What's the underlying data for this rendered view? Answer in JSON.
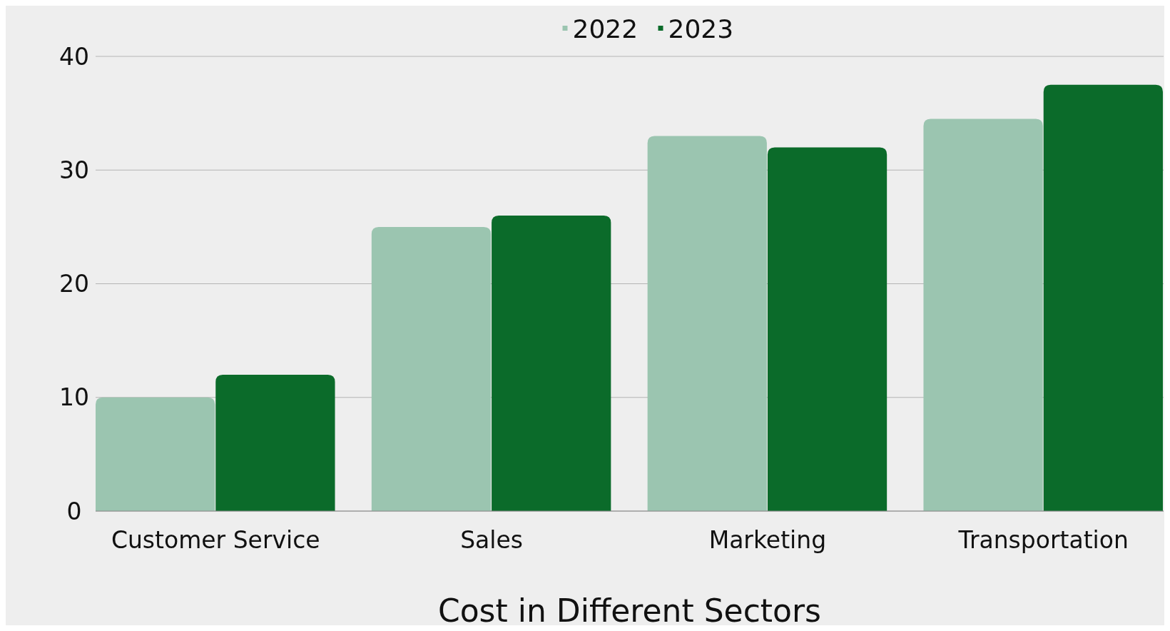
{
  "chart_data": {
    "type": "bar",
    "xlabel": "Cost in Different Sectors",
    "categories": [
      "Customer Service",
      "Sales",
      "Marketing",
      "Transportation"
    ],
    "series": [
      {
        "name": "2022",
        "color": "#9bc5b0",
        "values": [
          10,
          25,
          33,
          34.5
        ]
      },
      {
        "name": "2023",
        "color": "#0b6b2a",
        "values": [
          12,
          26,
          32,
          37.5
        ]
      }
    ],
    "ylim": [
      0,
      40
    ],
    "yticks": [
      0,
      10,
      20,
      30,
      40
    ],
    "grid": "y",
    "legend": "top"
  }
}
